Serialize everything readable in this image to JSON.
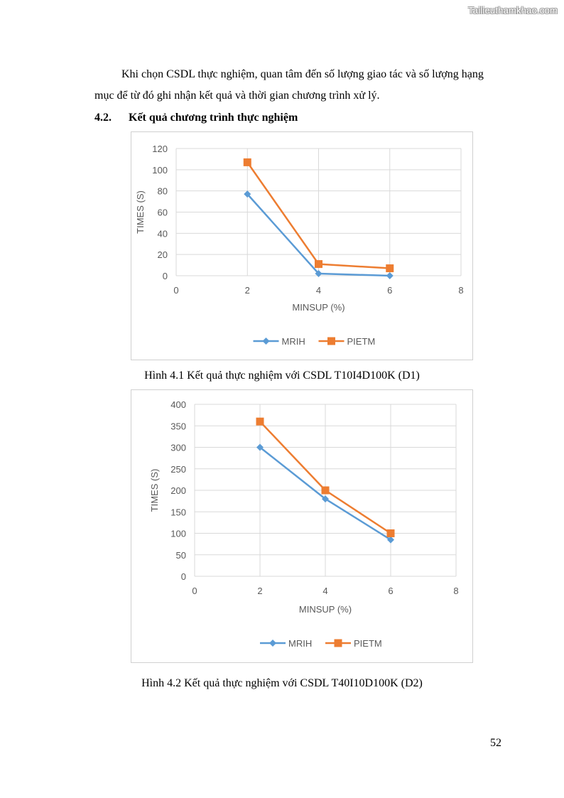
{
  "watermark": "Tailieuthamkhao.com",
  "paragraph": {
    "line1": "Khi chọn CSDL thực nghiệm, quan tâm đến số lượng giao tác và số lượng hạng",
    "line2": "mục để từ đó ghi nhận kết quả và thời gian chương trình xử lý."
  },
  "section": {
    "number": "4.2.",
    "title": "Kết quả chương trình thực nghiệm"
  },
  "chart_data": [
    {
      "type": "scatter",
      "xlabel": "MINSUP (%)",
      "ylabel": "TIMES (S)",
      "xlim": [
        0,
        8
      ],
      "ylim": [
        0,
        120
      ],
      "xticks": [
        0,
        2,
        4,
        6,
        8
      ],
      "yticks": [
        0,
        20,
        40,
        60,
        80,
        100,
        120
      ],
      "grid": true,
      "legend": "bottom",
      "series": [
        {
          "name": "MRIH",
          "color": "#5B9BD5",
          "marker": "diamond",
          "x": [
            2,
            4,
            6
          ],
          "y": [
            77,
            2,
            0
          ]
        },
        {
          "name": "PIETM",
          "color": "#ED7D31",
          "marker": "square",
          "x": [
            2,
            4,
            6
          ],
          "y": [
            107,
            11,
            7
          ]
        }
      ]
    },
    {
      "type": "scatter",
      "xlabel": "MINSUP (%)",
      "ylabel": "TIMES (S)",
      "xlim": [
        0,
        8
      ],
      "ylim": [
        0,
        400
      ],
      "xticks": [
        0,
        2,
        4,
        6,
        8
      ],
      "yticks": [
        0,
        50,
        100,
        150,
        200,
        250,
        300,
        350,
        400
      ],
      "grid": true,
      "legend": "bottom",
      "series": [
        {
          "name": "MRIH",
          "color": "#5B9BD5",
          "marker": "diamond",
          "x": [
            2,
            4,
            6
          ],
          "y": [
            300,
            180,
            85
          ]
        },
        {
          "name": "PIETM",
          "color": "#ED7D31",
          "marker": "square",
          "x": [
            2,
            4,
            6
          ],
          "y": [
            360,
            200,
            100
          ]
        }
      ]
    }
  ],
  "captions": {
    "fig1": "Hình 4.1 Kết quả thực nghiệm với CSDL T10I4D100K (D1)",
    "fig2": "Hình 4.2 Kết quả thực nghiệm với CSDL T40I10D100K (D2)"
  },
  "page_number": "52"
}
